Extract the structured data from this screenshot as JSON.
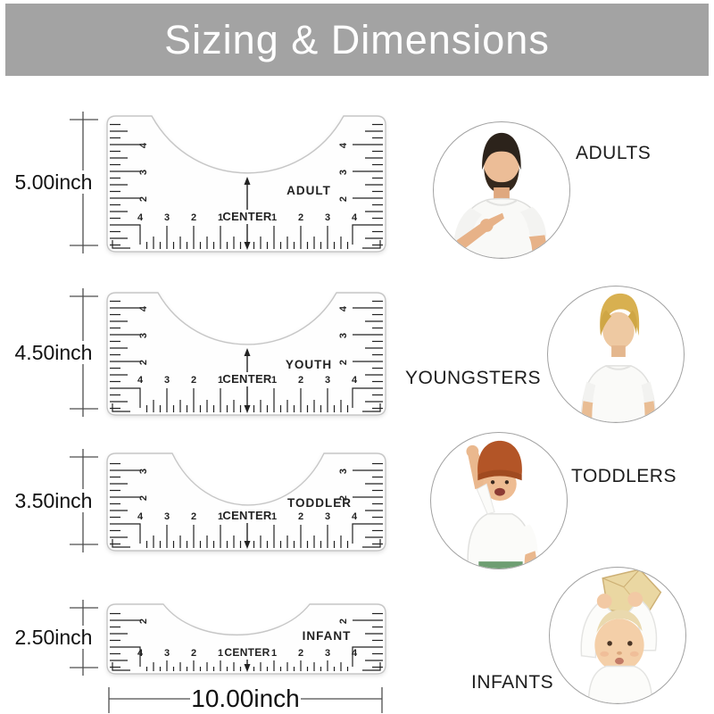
{
  "title": "Sizing & Dimensions",
  "colors": {
    "banner": "#a3a3a3",
    "title_text": "#ffffff",
    "annotation_line": "#4d4d4d",
    "ruler_outline": "#c6c6c6",
    "ruler_mark": "#222222"
  },
  "rulers": [
    {
      "name": "ADULT",
      "size_label": "5.00inch",
      "center_label": "CENTER",
      "v_numbers": [
        "4",
        "3",
        "2"
      ],
      "h_numbers_left": [
        "4",
        "3",
        "2",
        "1"
      ],
      "h_numbers_right": [
        "1",
        "2",
        "3",
        "4"
      ]
    },
    {
      "name": "YOUTH",
      "size_label": "4.50inch",
      "center_label": "CENTER",
      "v_numbers": [
        "4",
        "3",
        "2"
      ],
      "h_numbers_left": [
        "4",
        "3",
        "2",
        "1"
      ],
      "h_numbers_right": [
        "1",
        "2",
        "3",
        "4"
      ]
    },
    {
      "name": "TODDLER",
      "size_label": "3.50inch",
      "center_label": "CENTER",
      "v_numbers": [
        "3",
        "2"
      ],
      "h_numbers_left": [
        "4",
        "3",
        "2",
        "1"
      ],
      "h_numbers_right": [
        "1",
        "2",
        "3",
        "4"
      ]
    },
    {
      "name": "INFANT",
      "size_label": "2.50inch",
      "center_label": "CENTER",
      "v_numbers": [
        "2"
      ],
      "h_numbers_left": [
        "4",
        "3",
        "2",
        "1"
      ],
      "h_numbers_right": [
        "1",
        "2",
        "3",
        "4"
      ]
    }
  ],
  "bottom_dimension": {
    "label": "10.00inch"
  },
  "categories": [
    {
      "label": "ADULTS"
    },
    {
      "label": "YOUNGSTERS"
    },
    {
      "label": "TODDLERS"
    },
    {
      "label": "INFANTS"
    }
  ]
}
